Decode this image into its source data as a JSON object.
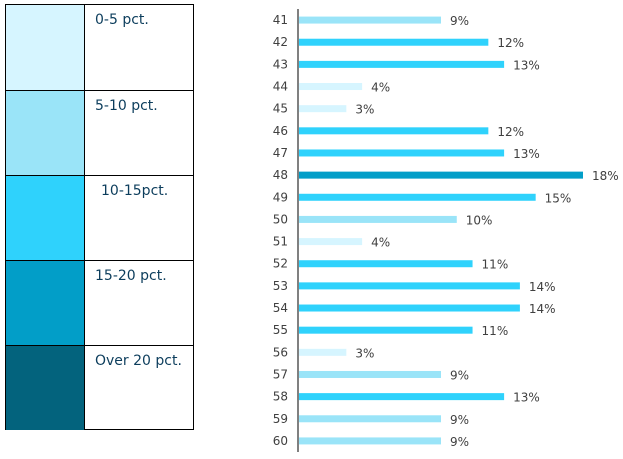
{
  "legend": {
    "items": [
      {
        "label": "0-5 pct.",
        "color": "#d6f5ff"
      },
      {
        "label": "5-10 pct.",
        "color": "#9ae4f8"
      },
      {
        "label": "10-15pct.",
        "color": "#2fd2fc"
      },
      {
        "label": "15-20 pct.",
        "color": "#029ec8"
      },
      {
        "label": "Over 20 pct.",
        "color": "#03637d"
      }
    ]
  },
  "chart_data": {
    "type": "bar",
    "orientation": "horizontal",
    "categories": [
      "41",
      "42",
      "43",
      "44",
      "45",
      "46",
      "47",
      "48",
      "49",
      "50",
      "51",
      "52",
      "53",
      "54",
      "55",
      "56",
      "57",
      "58",
      "59",
      "60"
    ],
    "values": [
      9,
      12,
      13,
      4,
      3,
      12,
      13,
      18,
      15,
      10,
      4,
      11,
      14,
      14,
      11,
      3,
      9,
      13,
      9,
      9
    ],
    "data_labels": [
      "9%",
      "12%",
      "13%",
      "4%",
      "3%",
      "12%",
      "13%",
      "18%",
      "15%",
      "10%",
      "4%",
      "11%",
      "14%",
      "14%",
      "11%",
      "3%",
      "9%",
      "13%",
      "9%",
      "9%"
    ],
    "xlim": [
      0,
      18
    ],
    "grid": false
  }
}
